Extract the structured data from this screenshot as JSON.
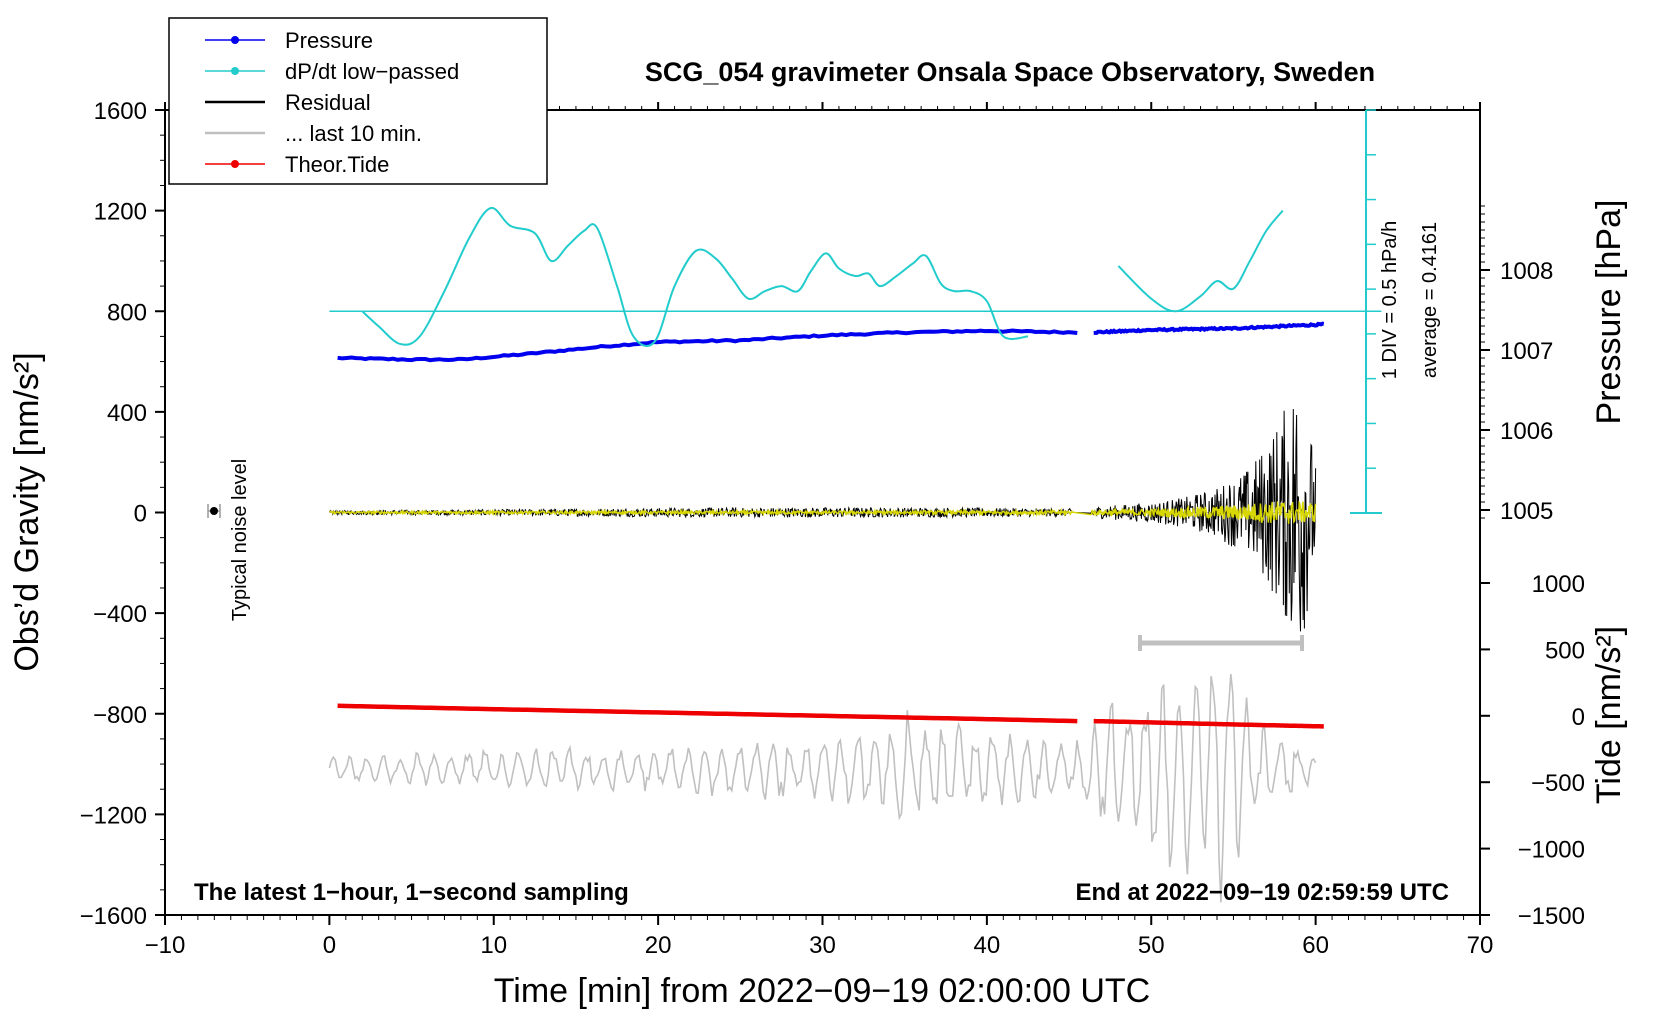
{
  "chart_data": {
    "type": "line",
    "title": "SCG_054 gravimeter Onsala Space Observatory, Sweden",
    "xlabel": "Time [min] from 2022−09−19 02:00:00 UTC",
    "ylabel_left": "Obs’d Gravity [nm/s²]",
    "ylabel_pressure": "Pressure [hPa]",
    "ylabel_tide": "Tide [nm/s²]",
    "xlim": [
      -10,
      70
    ],
    "ylim": [
      -1600,
      1600
    ],
    "pressure_lim": [
      1005,
      1008
    ],
    "tide_lim": [
      -1500,
      1000
    ],
    "x_ticks": [
      "−10",
      "0",
      "10",
      "20",
      "30",
      "40",
      "50",
      "60",
      "70"
    ],
    "x_tick_values": [
      -10,
      0,
      10,
      20,
      30,
      40,
      50,
      60,
      70
    ],
    "y_ticks": [
      "−1600",
      "−1200",
      "−800",
      "−400",
      "0",
      "400",
      "800",
      "1200",
      "1600"
    ],
    "y_tick_values": [
      -1600,
      -1200,
      -800,
      -400,
      0,
      400,
      800,
      1200,
      1600
    ],
    "pressure_ticks": [
      "1005",
      "1006",
      "1007",
      "1008"
    ],
    "pressure_tick_values": [
      1005,
      1006,
      1007,
      1008
    ],
    "tide_ticks": [
      "−1500",
      "−1000",
      "−500",
      "0",
      "500",
      "1000"
    ],
    "tide_tick_values": [
      -1500,
      -1000,
      -500,
      0,
      500,
      1000
    ],
    "legend": [
      {
        "label": "Pressure",
        "color": "#0000ee",
        "style": "line-dot"
      },
      {
        "label": "dP/dt low−passed",
        "color": "#22cccc",
        "style": "line-dot"
      },
      {
        "label": "Residual",
        "color": "#000000",
        "style": "line"
      },
      {
        "label": "... last 10 min.",
        "color": "#c0c0c0",
        "style": "line"
      },
      {
        "label": "Theor.Tide",
        "color": "#ee0000",
        "style": "line-dot"
      }
    ],
    "annotations": {
      "left_bottom": "The latest 1−hour, 1−second sampling",
      "right_bottom": "End at 2022−09−19 02:59:59 UTC",
      "noise_label": "Typical noise level",
      "div_label": "1 DIV = 0.5 hPa/h",
      "avg_label": "average = 0.4161"
    },
    "series": [
      {
        "name": "Pressure",
        "axis": "pressure",
        "color": "#0000ee",
        "segments": [
          {
            "x": [
              0.5,
              5,
              8,
              12,
              17,
              20,
              25,
              30,
              35,
              40,
              45.5
            ],
            "y": [
              1006.9,
              1006.88,
              1006.88,
              1006.95,
              1007.05,
              1007.1,
              1007.12,
              1007.18,
              1007.22,
              1007.24,
              1007.22
            ]
          },
          {
            "x": [
              46.5,
              50,
              55,
              60.5
            ],
            "y": [
              1007.22,
              1007.25,
              1007.27,
              1007.32
            ]
          }
        ]
      },
      {
        "name": "dP/dt low−passed",
        "axis": "gravity",
        "color": "#22cccc",
        "baseline": 800,
        "segments": [
          {
            "x": [
              2,
              3,
              4.3,
              5.5,
              7,
              8.5,
              9.8,
              11,
              12.5,
              13.5,
              14.5,
              15.5,
              16.3,
              17.5,
              18.5,
              19.8,
              21,
              22.3,
              23.5,
              24.5,
              25.5,
              26.5,
              27.5,
              28.5,
              29.3,
              30.2,
              31,
              32,
              32.8,
              33.5,
              34.5,
              35.5,
              36.3,
              37.2,
              38,
              39,
              40,
              41,
              42.5
            ],
            "y": [
              800,
              740,
              670,
              700,
              880,
              1090,
              1210,
              1140,
              1110,
              1000,
              1060,
              1120,
              1130,
              900,
              700,
              680,
              900,
              1040,
              1010,
              930,
              850,
              880,
              900,
              880,
              960,
              1030,
              970,
              940,
              950,
              900,
              940,
              990,
              1020,
              910,
              880,
              880,
              840,
              700,
              700
            ]
          },
          {
            "x": [
              48,
              50,
              51.5,
              53,
              54,
              55,
              56,
              57,
              58
            ],
            "y": [
              980,
              850,
              800,
              860,
              920,
              890,
              1000,
              1120,
              1200
            ]
          }
        ]
      },
      {
        "name": "Residual",
        "axis": "gravity",
        "color": "#000000",
        "envelope": {
          "x": [
            0,
            10,
            20,
            30,
            40,
            45,
            46,
            50,
            52,
            54,
            56,
            57,
            58,
            59,
            60
          ],
          "amp": [
            8,
            12,
            18,
            20,
            18,
            15,
            20,
            40,
            60,
            100,
            180,
            280,
            400,
            600,
            200
          ]
        }
      },
      {
        "name": "Residual (yellow)",
        "axis": "gravity",
        "color": "#d8d800",
        "envelope": {
          "x": [
            0,
            20,
            45,
            50,
            55,
            58,
            60
          ],
          "amp": [
            5,
            6,
            8,
            15,
            30,
            50,
            40
          ]
        }
      },
      {
        "name": "... last 10 min.",
        "axis": "gravity",
        "color": "#c0c0c0",
        "envelope": {
          "x": [
            0,
            10,
            20,
            25,
            30,
            35,
            40,
            45,
            48,
            50,
            52,
            54,
            56,
            58,
            60
          ],
          "amp": [
            50,
            80,
            100,
            120,
            130,
            250,
            180,
            120,
            300,
            450,
            500,
            600,
            350,
            150,
            50
          ]
        },
        "center": -1020
      },
      {
        "name": "Theor.Tide",
        "axis": "tide",
        "color": "#ee0000",
        "segments": [
          {
            "x": [
              0.5,
              10,
              20,
              30,
              40,
              45.5
            ],
            "y": [
              75,
              50,
              25,
              0,
              -25,
              -40
            ]
          },
          {
            "x": [
              46.5,
              50,
              55,
              60.5
            ],
            "y": [
              -40,
              -50,
              -65,
              -80
            ]
          }
        ]
      }
    ]
  }
}
